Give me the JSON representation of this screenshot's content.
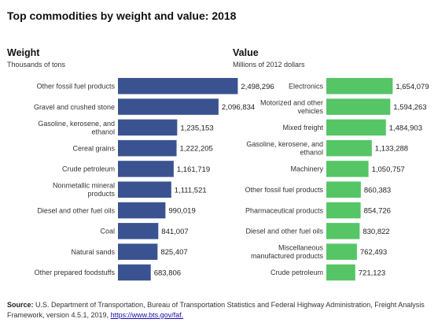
{
  "title": "Top commodities by weight and value: 2018",
  "source": {
    "label": "Source:",
    "text": "U.S. Department of Transportation, Bureau of Transportation Statistics and Federal Highway Administration, Freight Analysis Framework, version 4.5.1, 2019,",
    "link": "https://www.bts.gov/faf."
  },
  "chart_data": [
    {
      "type": "bar",
      "orientation": "horizontal",
      "title": "Weight",
      "subtitle": "Thousands of tons",
      "color": "#3A5390",
      "categories": [
        [
          "Other fossil fuel products"
        ],
        [
          "Gravel and crushed stone"
        ],
        [
          "Gasoline, kerosene, and",
          "ethanol"
        ],
        [
          "Cereal grains"
        ],
        [
          "Crude petroleum"
        ],
        [
          "Nonmetallic mineral",
          "products"
        ],
        [
          "Diesel and other fuel oils"
        ],
        [
          "Coal"
        ],
        [
          "Natural sands"
        ],
        [
          "Other prepared foodstuffs"
        ]
      ],
      "values": [
        2498296,
        2096834,
        1235153,
        1222205,
        1161719,
        1111521,
        990019,
        841007,
        825407,
        683806
      ],
      "labels": [
        "2,498,296",
        "2,096,834",
        "1,235,153",
        "1,222,205",
        "1,161,719",
        "1,111,521",
        "990,019",
        "841,007",
        "825,407",
        "683,806"
      ]
    },
    {
      "type": "bar",
      "orientation": "horizontal",
      "title": "Value",
      "subtitle": "Millions of 2012 dollars",
      "color": "#55C566",
      "categories": [
        [
          "Electronics"
        ],
        [
          "Motorized and other",
          "vehicles"
        ],
        [
          "Mixed freight"
        ],
        [
          "Gasoline, kerosene, and",
          "ethanol"
        ],
        [
          "Machinery"
        ],
        [
          "Other fossil fuel products"
        ],
        [
          "Pharmaceutical products"
        ],
        [
          "Diesel and other fuel oils"
        ],
        [
          "Miscellaneous",
          "manufactured products"
        ],
        [
          "Crude petroleum"
        ]
      ],
      "values": [
        1654079,
        1594263,
        1484903,
        1133288,
        1050757,
        860383,
        854726,
        830822,
        762493,
        721123
      ],
      "labels": [
        "1,654,079",
        "1,594,263",
        "1,484,903",
        "1,133,288",
        "1,050,757",
        "860,383",
        "854,726",
        "830,822",
        "762,493",
        "721,123"
      ]
    }
  ]
}
